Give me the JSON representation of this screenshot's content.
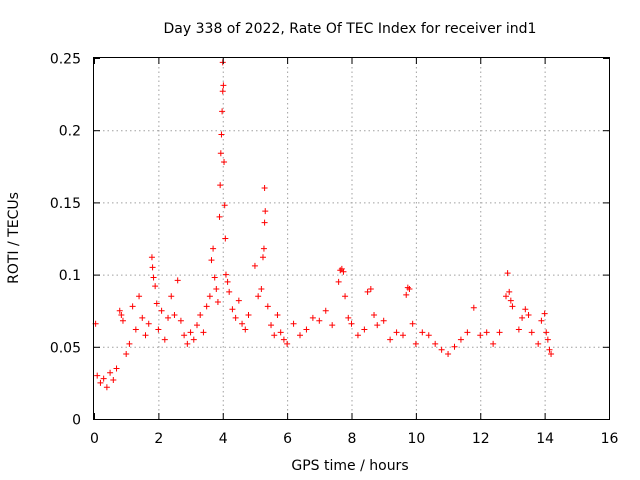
{
  "chart_data": {
    "type": "scatter",
    "title": "Day 338 of 2022, Rate Of TEC Index for receiver ind1",
    "xlabel": "GPS time / hours",
    "ylabel": "ROTI / TECUs",
    "xlim": [
      0,
      16
    ],
    "ylim": [
      0,
      0.25
    ],
    "xticks": [
      0,
      2,
      4,
      6,
      8,
      10,
      12,
      14,
      16
    ],
    "xtick_labels": [
      "0",
      "2",
      "4",
      "6",
      "8",
      "10",
      "12",
      "14",
      "16"
    ],
    "yticks": [
      0,
      0.05,
      0.1,
      0.15,
      0.2,
      0.25
    ],
    "ytick_labels": [
      "0",
      "0.05",
      "0.1",
      "0.15",
      "0.2",
      "0.25"
    ],
    "grid": true,
    "marker": "+",
    "color": "#ff0000",
    "series": [
      {
        "name": "ind1",
        "points": [
          [
            0.05,
            0.066
          ],
          [
            0.1,
            0.03
          ],
          [
            0.2,
            0.025
          ],
          [
            0.3,
            0.028
          ],
          [
            0.4,
            0.022
          ],
          [
            0.5,
            0.032
          ],
          [
            0.6,
            0.027
          ],
          [
            0.7,
            0.035
          ],
          [
            0.8,
            0.075
          ],
          [
            0.85,
            0.072
          ],
          [
            0.9,
            0.068
          ],
          [
            1.0,
            0.045
          ],
          [
            1.1,
            0.052
          ],
          [
            1.2,
            0.078
          ],
          [
            1.3,
            0.062
          ],
          [
            1.4,
            0.085
          ],
          [
            1.5,
            0.07
          ],
          [
            1.6,
            0.058
          ],
          [
            1.7,
            0.066
          ],
          [
            1.8,
            0.112
          ],
          [
            1.82,
            0.105
          ],
          [
            1.85,
            0.098
          ],
          [
            1.9,
            0.092
          ],
          [
            1.95,
            0.08
          ],
          [
            2.0,
            0.062
          ],
          [
            2.1,
            0.075
          ],
          [
            2.2,
            0.055
          ],
          [
            2.3,
            0.07
          ],
          [
            2.4,
            0.085
          ],
          [
            2.5,
            0.072
          ],
          [
            2.6,
            0.096
          ],
          [
            2.7,
            0.068
          ],
          [
            2.8,
            0.058
          ],
          [
            2.9,
            0.052
          ],
          [
            3.0,
            0.06
          ],
          [
            3.1,
            0.055
          ],
          [
            3.2,
            0.065
          ],
          [
            3.3,
            0.072
          ],
          [
            3.4,
            0.06
          ],
          [
            3.5,
            0.078
          ],
          [
            3.6,
            0.085
          ],
          [
            3.65,
            0.11
          ],
          [
            3.7,
            0.118
          ],
          [
            3.75,
            0.098
          ],
          [
            3.8,
            0.09
          ],
          [
            3.85,
            0.081
          ],
          [
            3.9,
            0.14
          ],
          [
            3.92,
            0.162
          ],
          [
            3.94,
            0.184
          ],
          [
            3.96,
            0.197
          ],
          [
            3.98,
            0.213
          ],
          [
            4.0,
            0.227
          ],
          [
            4.0,
            0.247
          ],
          [
            4.02,
            0.231
          ],
          [
            4.04,
            0.178
          ],
          [
            4.06,
            0.148
          ],
          [
            4.08,
            0.125
          ],
          [
            4.1,
            0.1
          ],
          [
            4.15,
            0.095
          ],
          [
            4.2,
            0.088
          ],
          [
            4.3,
            0.076
          ],
          [
            4.4,
            0.07
          ],
          [
            4.5,
            0.082
          ],
          [
            4.6,
            0.066
          ],
          [
            4.7,
            0.062
          ],
          [
            4.8,
            0.072
          ],
          [
            5.0,
            0.106
          ],
          [
            5.1,
            0.085
          ],
          [
            5.2,
            0.09
          ],
          [
            5.25,
            0.112
          ],
          [
            5.28,
            0.118
          ],
          [
            5.3,
            0.136
          ],
          [
            5.32,
            0.144
          ],
          [
            5.3,
            0.16
          ],
          [
            5.4,
            0.078
          ],
          [
            5.5,
            0.065
          ],
          [
            5.6,
            0.058
          ],
          [
            5.7,
            0.072
          ],
          [
            5.8,
            0.06
          ],
          [
            5.9,
            0.055
          ],
          [
            6.0,
            0.052
          ],
          [
            6.2,
            0.066
          ],
          [
            6.4,
            0.058
          ],
          [
            6.6,
            0.062
          ],
          [
            6.8,
            0.07
          ],
          [
            7.0,
            0.068
          ],
          [
            7.2,
            0.075
          ],
          [
            7.4,
            0.065
          ],
          [
            7.6,
            0.095
          ],
          [
            7.65,
            0.103
          ],
          [
            7.7,
            0.104
          ],
          [
            7.75,
            0.102
          ],
          [
            7.8,
            0.085
          ],
          [
            7.9,
            0.07
          ],
          [
            8.0,
            0.066
          ],
          [
            8.2,
            0.058
          ],
          [
            8.4,
            0.062
          ],
          [
            8.5,
            0.088
          ],
          [
            8.6,
            0.09
          ],
          [
            8.7,
            0.072
          ],
          [
            8.8,
            0.065
          ],
          [
            9.0,
            0.068
          ],
          [
            9.2,
            0.055
          ],
          [
            9.4,
            0.06
          ],
          [
            9.6,
            0.058
          ],
          [
            9.7,
            0.086
          ],
          [
            9.75,
            0.091
          ],
          [
            9.8,
            0.09
          ],
          [
            9.9,
            0.066
          ],
          [
            10.0,
            0.052
          ],
          [
            10.2,
            0.06
          ],
          [
            10.4,
            0.058
          ],
          [
            10.6,
            0.052
          ],
          [
            10.8,
            0.048
          ],
          [
            11.0,
            0.045
          ],
          [
            11.2,
            0.05
          ],
          [
            11.4,
            0.055
          ],
          [
            11.6,
            0.06
          ],
          [
            11.8,
            0.077
          ],
          [
            12.0,
            0.058
          ],
          [
            12.2,
            0.06
          ],
          [
            12.4,
            0.052
          ],
          [
            12.6,
            0.06
          ],
          [
            12.8,
            0.085
          ],
          [
            12.85,
            0.101
          ],
          [
            12.9,
            0.088
          ],
          [
            12.95,
            0.082
          ],
          [
            13.0,
            0.078
          ],
          [
            13.2,
            0.062
          ],
          [
            13.3,
            0.07
          ],
          [
            13.4,
            0.076
          ],
          [
            13.5,
            0.072
          ],
          [
            13.6,
            0.06
          ],
          [
            13.8,
            0.052
          ],
          [
            13.9,
            0.068
          ],
          [
            14.0,
            0.073
          ],
          [
            14.05,
            0.06
          ],
          [
            14.1,
            0.055
          ],
          [
            14.15,
            0.048
          ],
          [
            14.2,
            0.045
          ]
        ]
      }
    ]
  }
}
